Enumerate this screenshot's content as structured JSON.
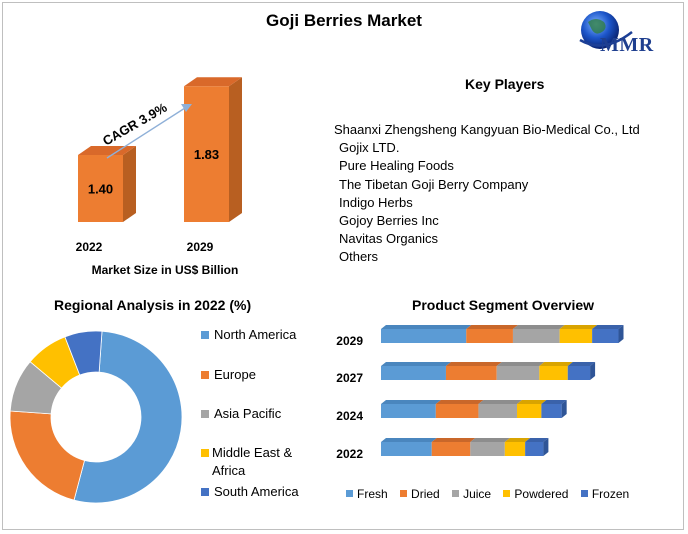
{
  "title": "Goji Berries Market",
  "logo": {
    "text": "MMR"
  },
  "key_players": {
    "title": "Key Players",
    "items": [
      "Shaanxi Zhengsheng Kangyuan Bio-Medical Co., Ltd",
      "Gojix LTD.",
      "Pure Healing Foods",
      "The Tibetan Goji Berry Company",
      "Indigo Herbs",
      "Gojoy Berries Inc",
      "Navitas Organics",
      "Others"
    ]
  },
  "colors": {
    "orange_bar": "#ED7D31",
    "orange_side": "#B85F21",
    "fresh": "#5B9BD5",
    "dried": "#ED7D31",
    "juice": "#A5A5A5",
    "powdered": "#FFC000",
    "frozen": "#4472C4"
  },
  "chart_data": [
    {
      "id": "market_size",
      "type": "bar",
      "categories": [
        "2022",
        "2029"
      ],
      "values": [
        1.4,
        1.83
      ],
      "value_labels": [
        "1.40",
        "1.83"
      ],
      "xlabel": "Market Size in US$ Billion",
      "annotation": "CAGR 3.9%"
    },
    {
      "id": "regional",
      "type": "pie",
      "title": "Regional Analysis in 2022 (%)",
      "labels": [
        "North America",
        "Europe",
        "Asia Pacific",
        "Middle East & Africa",
        "South America"
      ],
      "values": [
        53,
        22,
        10,
        8,
        7
      ]
    },
    {
      "id": "segment",
      "type": "bar",
      "orientation": "horizontal",
      "stacked": true,
      "title": "Product Segment Overview",
      "categories": [
        "2029",
        "2027",
        "2024",
        "2022"
      ],
      "series": [
        {
          "name": "Fresh",
          "values": [
            4.2,
            3.2,
            2.7,
            2.5
          ]
        },
        {
          "name": "Dried",
          "values": [
            2.3,
            2.5,
            2.1,
            1.9
          ]
        },
        {
          "name": "Juice",
          "values": [
            2.3,
            2.1,
            1.9,
            1.7
          ]
        },
        {
          "name": "Powdered",
          "values": [
            1.6,
            1.4,
            1.2,
            1.0
          ]
        },
        {
          "name": "Frozen",
          "values": [
            1.3,
            1.1,
            1.0,
            0.9
          ]
        }
      ]
    }
  ]
}
